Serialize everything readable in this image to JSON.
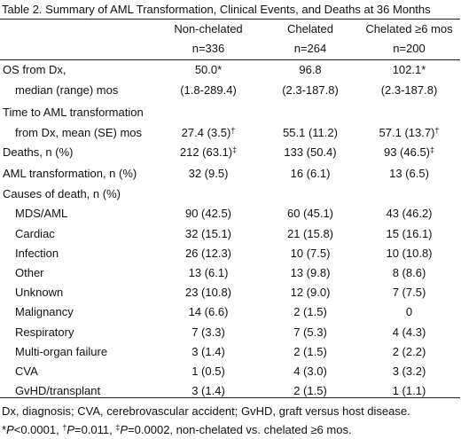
{
  "title": "Table 2. Summary of AML Transformation, Clinical Events, and Deaths at 36 Months",
  "columns": [
    {
      "name": "Non-chelated",
      "n": "n=336"
    },
    {
      "name": "Chelated",
      "n": "n=264"
    },
    {
      "name": "Chelated ≥6 mos",
      "n": "n=200"
    }
  ],
  "rows": [
    {
      "label": "OS from Dx,",
      "indent": false,
      "values": [
        {
          "v": "50.0*",
          "sup": ""
        },
        {
          "v": "96.8",
          "sup": ""
        },
        {
          "v": "102.1*",
          "sup": ""
        }
      ]
    },
    {
      "label": "median (range) mos",
      "indent": true,
      "values": [
        {
          "v": "(1.8-289.4)",
          "sup": ""
        },
        {
          "v": "(2.3-187.8)",
          "sup": ""
        },
        {
          "v": "(2.3-187.8)",
          "sup": ""
        }
      ]
    },
    {
      "label": "Time to AML transformation",
      "indent": false,
      "values": [
        {
          "v": "",
          "sup": ""
        },
        {
          "v": "",
          "sup": ""
        },
        {
          "v": "",
          "sup": ""
        }
      ]
    },
    {
      "label": "from Dx, mean (SE) mos",
      "indent": true,
      "values": [
        {
          "v": "27.4 (3.5)",
          "sup": "†"
        },
        {
          "v": "55.1 (11.2)",
          "sup": ""
        },
        {
          "v": "57.1 (13.7)",
          "sup": "†"
        }
      ]
    },
    {
      "label": "Deaths, n (%)",
      "indent": false,
      "values": [
        {
          "v": "212 (63.1)",
          "sup": "‡"
        },
        {
          "v": "133 (50.4)",
          "sup": ""
        },
        {
          "v": "93 (46.5)",
          "sup": "‡"
        }
      ]
    },
    {
      "label": "AML transformation, n (%)",
      "indent": false,
      "values": [
        {
          "v": "32 (9.5)",
          "sup": ""
        },
        {
          "v": "16 (6.1)",
          "sup": ""
        },
        {
          "v": "13 (6.5)",
          "sup": ""
        }
      ]
    },
    {
      "label": "Causes of death, n (%)",
      "indent": false,
      "values": [
        {
          "v": "",
          "sup": ""
        },
        {
          "v": "",
          "sup": ""
        },
        {
          "v": "",
          "sup": ""
        }
      ]
    },
    {
      "label": "MDS/AML",
      "indent": true,
      "values": [
        {
          "v": "90 (42.5)",
          "sup": ""
        },
        {
          "v": "60 (45.1)",
          "sup": ""
        },
        {
          "v": "43 (46.2)",
          "sup": ""
        }
      ]
    },
    {
      "label": "Cardiac",
      "indent": true,
      "values": [
        {
          "v": "32 (15.1)",
          "sup": ""
        },
        {
          "v": "21 (15.8)",
          "sup": ""
        },
        {
          "v": "15 (16.1)",
          "sup": ""
        }
      ]
    },
    {
      "label": "Infection",
      "indent": true,
      "values": [
        {
          "v": "26 (12.3)",
          "sup": ""
        },
        {
          "v": "10 (7.5)",
          "sup": ""
        },
        {
          "v": "10 (10.8)",
          "sup": ""
        }
      ]
    },
    {
      "label": "Other",
      "indent": true,
      "values": [
        {
          "v": "13 (6.1)",
          "sup": ""
        },
        {
          "v": "13 (9.8)",
          "sup": ""
        },
        {
          "v": "8 (8.6)",
          "sup": ""
        }
      ]
    },
    {
      "label": "Unknown",
      "indent": true,
      "values": [
        {
          "v": "23 (10.8)",
          "sup": ""
        },
        {
          "v": "12 (9.0)",
          "sup": ""
        },
        {
          "v": "7 (7.5)",
          "sup": ""
        }
      ]
    },
    {
      "label": "Malignancy",
      "indent": true,
      "values": [
        {
          "v": "14 (6.6)",
          "sup": ""
        },
        {
          "v": "2 (1.5)",
          "sup": ""
        },
        {
          "v": "0",
          "sup": ""
        }
      ]
    },
    {
      "label": "Respiratory",
      "indent": true,
      "values": [
        {
          "v": "7 (3.3)",
          "sup": ""
        },
        {
          "v": "7 (5.3)",
          "sup": ""
        },
        {
          "v": "4 (4.3)",
          "sup": ""
        }
      ]
    },
    {
      "label": "Multi-organ failure",
      "indent": true,
      "values": [
        {
          "v": "3 (1.4)",
          "sup": ""
        },
        {
          "v": "2 (1.5)",
          "sup": ""
        },
        {
          "v": "2 (2.2)",
          "sup": ""
        }
      ]
    },
    {
      "label": "CVA",
      "indent": true,
      "values": [
        {
          "v": "1 (0.5)",
          "sup": ""
        },
        {
          "v": "4 (3.0)",
          "sup": ""
        },
        {
          "v": "3 (3.2)",
          "sup": ""
        }
      ]
    },
    {
      "label": "GvHD/transplant",
      "indent": true,
      "values": [
        {
          "v": "3 (1.4)",
          "sup": ""
        },
        {
          "v": "2 (1.5)",
          "sup": ""
        },
        {
          "v": "1 (1.1)",
          "sup": ""
        }
      ]
    }
  ],
  "footnotes": {
    "abbrev": "Dx, diagnosis; CVA, cerebrovascular accident; GvHD, graft versus host disease.",
    "p_parts": [
      {
        "t": "*",
        "sup": false,
        "it": false
      },
      {
        "t": "P",
        "sup": false,
        "it": true
      },
      {
        "t": "<0.0001, ",
        "sup": false,
        "it": false
      },
      {
        "t": "†",
        "sup": true,
        "it": false
      },
      {
        "t": "P",
        "sup": false,
        "it": true
      },
      {
        "t": "=0.011, ",
        "sup": false,
        "it": false
      },
      {
        "t": "‡",
        "sup": true,
        "it": false
      },
      {
        "t": "P",
        "sup": false,
        "it": true
      },
      {
        "t": "=0.0002, non-chelated vs. chelated ≥6 mos.",
        "sup": false,
        "it": false
      }
    ]
  }
}
